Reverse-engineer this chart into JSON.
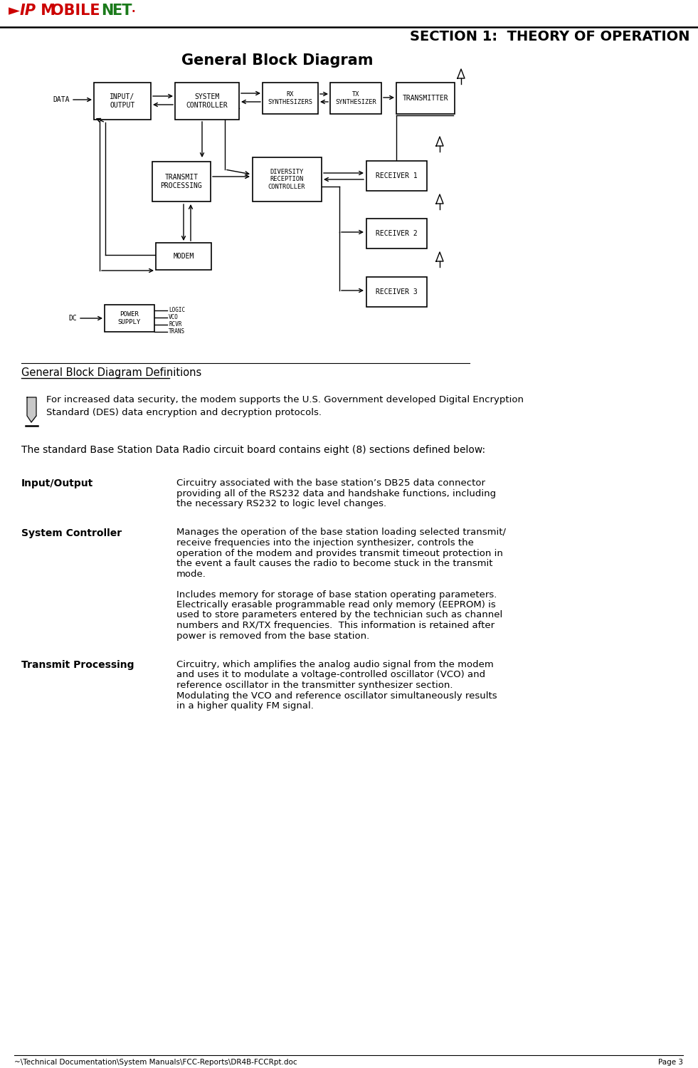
{
  "page_title": "SECTION 1:  THEORY OF OPERATION",
  "footer_left": "~\\Technical Documentation\\System Manuals\\FCC-Reports\\DR4B-FCCRpt.doc",
  "footer_right": "Page 3",
  "diagram_title": "General Block Diagram",
  "section_heading": "General Block Diagram Definitions",
  "note_text": "For increased data security, the modem supports the U.S. Government developed Digital Encryption\nStandard (DES) data encryption and decryption protocols.",
  "intro_text": "The standard Base Station Data Radio circuit board contains eight (8) sections defined below:",
  "def1_term": "Input/Output",
  "def1_text": "Circuitry associated with the base station’s DB25 data connector\nproviding all of the RS232 data and handshake functions, including\nthe necessary RS232 to logic level changes.",
  "def2_term": "System Controller",
  "def2_text1": "Manages the operation of the base station loading selected transmit/\nreceive frequencies into the injection synthesizer, controls the\noperation of the modem and provides transmit timeout protection in\nthe event a fault causes the radio to become stuck in the transmit\nmode.",
  "def2_text2": "Includes memory for storage of base station operating parameters.\nElectrically erasable programmable read only memory (EEPROM) is\nused to store parameters entered by the technician such as channel\nnumbers and RX/TX frequencies.  This information is retained after\npower is removed from the base station.",
  "def3_term": "Transmit Processing",
  "def3_text": "Circuitry, which amplifies the analog audio signal from the modem\nand uses it to modulate a voltage-controlled oscillator (VCO) and\nreference oscillator in the transmitter synthesizer section.\nModulating the VCO and reference oscillator simultaneously results\nin a higher quality FM signal.",
  "bg_color": "#ffffff",
  "text_color": "#000000",
  "logo_red": "#cc0000",
  "logo_green": "#1a7a1a"
}
